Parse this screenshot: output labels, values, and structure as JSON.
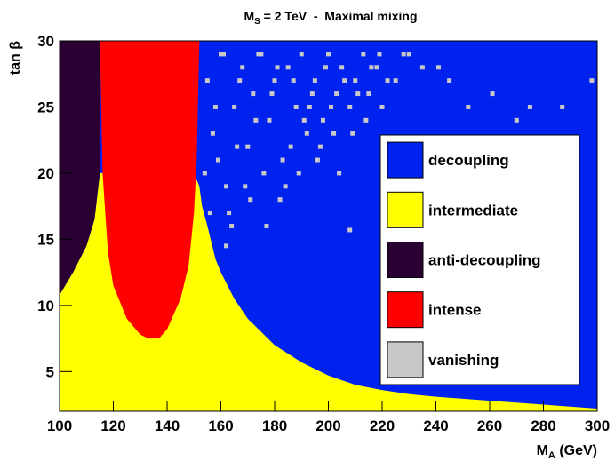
{
  "chart_data": {
    "type": "region",
    "title": {
      "main": "M",
      "sub": "S",
      "rest": " = 2 TeV  -  Maximal mixing"
    },
    "x_label": {
      "main": "M",
      "sub": "A",
      "rest": " (GeV)"
    },
    "y_label": "tan β",
    "xlim": [
      100,
      300
    ],
    "ylim": [
      2,
      30
    ],
    "xticks": [
      100,
      120,
      140,
      160,
      180,
      200,
      220,
      240,
      260,
      280,
      300
    ],
    "yticks": [
      5,
      10,
      15,
      20,
      25,
      30
    ],
    "legend": "right",
    "series": [
      {
        "name": "decoupling",
        "color": "#0022ee",
        "fill": "all"
      },
      {
        "name": "intermediate",
        "color": "#ffff00",
        "fill": "bottom",
        "x": [
          100,
          105,
          110,
          113,
          115,
          120,
          150,
          152,
          153,
          155,
          158,
          160,
          165,
          170,
          175,
          180,
          190,
          200,
          210,
          220,
          230,
          240,
          260,
          280,
          300
        ],
        "values": [
          10.8,
          12.5,
          14.5,
          16.5,
          20,
          20,
          20,
          19,
          17.5,
          16,
          13.5,
          12.5,
          10.5,
          9,
          8,
          7,
          5.7,
          4.7,
          4,
          3.6,
          3.3,
          3.1,
          2.8,
          2.5,
          2.2
        ]
      },
      {
        "name": "anti-decoupling",
        "color": "#2a0033",
        "fill": "top",
        "x": [
          100,
          105,
          110,
          113,
          115
        ],
        "values": [
          10.8,
          12.5,
          14.5,
          16.5,
          20
        ]
      },
      {
        "name": "intense",
        "color": "#ff0000",
        "fill": "top",
        "x": [
          115,
          116,
          118,
          120,
          125,
          130,
          133,
          137,
          140,
          145,
          148,
          150,
          151,
          152
        ],
        "values": [
          30,
          20,
          14,
          11.5,
          9,
          7.8,
          7.5,
          7.5,
          8.2,
          10.5,
          13,
          17,
          21,
          30
        ]
      },
      {
        "name": "vanishing",
        "color": "#c8c8c8",
        "fill": "points",
        "x": [
          155,
          157,
          160,
          162,
          165,
          168,
          170,
          172,
          175,
          178,
          180,
          183,
          185,
          188,
          190,
          192,
          195,
          198,
          200,
          203,
          205,
          208,
          210,
          213,
          215,
          218,
          220,
          225,
          230,
          235,
          156,
          159,
          163,
          166,
          169,
          173,
          176,
          179,
          182,
          186,
          189,
          193,
          196,
          199,
          202,
          206,
          211,
          216,
          222,
          228,
          153,
          154,
          158,
          161,
          164,
          167,
          171,
          174,
          177,
          181,
          184,
          187,
          191,
          194,
          197,
          201,
          204,
          209,
          214,
          219,
          241,
          252,
          261,
          270,
          275,
          245,
          287,
          298,
          208,
          162
        ],
        "values": [
          27,
          23,
          29,
          19,
          25,
          28,
          22,
          26,
          29,
          24,
          27,
          21,
          28,
          25,
          29,
          23,
          27,
          24,
          29,
          26,
          28,
          25,
          27,
          29,
          26,
          28,
          25,
          27,
          29,
          28,
          17,
          21,
          17,
          22,
          19,
          24,
          20,
          26,
          18,
          22,
          20,
          25,
          21,
          28,
          23,
          27,
          26,
          28,
          27,
          29,
          15,
          20,
          25,
          29,
          16,
          27,
          18,
          29,
          16,
          28,
          19,
          27,
          24,
          26,
          22,
          25,
          20,
          23,
          24,
          29,
          28,
          25,
          26,
          24,
          25,
          27,
          25,
          27,
          15.7,
          14.5
        ]
      }
    ],
    "draw_order": [
      0,
      4,
      1,
      2,
      3
    ]
  }
}
